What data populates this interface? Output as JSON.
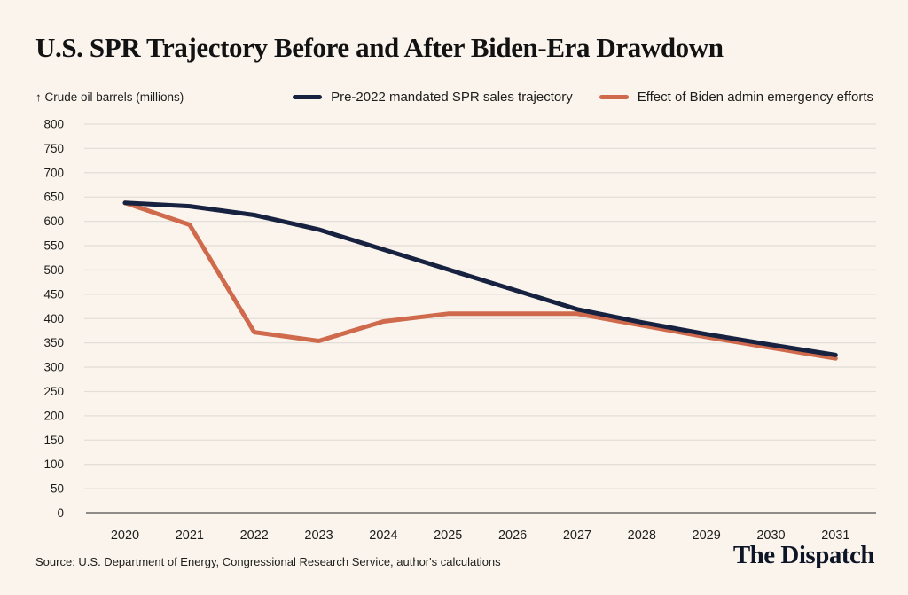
{
  "title": "U.S. SPR Trajectory Before and After Biden-Era Drawdown",
  "axis_note": "↑ Crude oil barrels (millions)",
  "source": "Source: U.S. Department of Energy, Congressional Research Service, author's calculations",
  "logo": "The Dispatch",
  "colors": {
    "background": "#faf4ed",
    "navy": "#172140",
    "orange": "#d06a4c",
    "grid": "#e3ded7",
    "axis": "#222222",
    "text": "#1d1d1b",
    "logo": "#0d1526"
  },
  "chart_data": {
    "type": "line",
    "title": "U.S. SPR Trajectory Before and After Biden-Era Drawdown",
    "ylabel": "Crude oil barrels (millions)",
    "xlabel": "",
    "x": [
      2020,
      2021,
      2022,
      2023,
      2024,
      2025,
      2026,
      2027,
      2028,
      2029,
      2030,
      2031
    ],
    "series": [
      {
        "name": "Pre-2022 mandated SPR sales trajectory",
        "color": "#172140",
        "values": [
          638,
          631,
          613,
          583,
          542,
          501,
          460,
          419,
          392,
          368,
          346,
          325
        ]
      },
      {
        "name": "Effect of Biden admin emergency efforts",
        "color": "#d06a4c",
        "values": [
          638,
          593,
          372,
          354,
          394,
          410,
          410,
          410,
          386,
          362,
          340,
          318
        ]
      }
    ],
    "ylim": [
      0,
      800
    ],
    "ytick_step": 50,
    "grid": "horizontal",
    "legend_position": "top"
  }
}
